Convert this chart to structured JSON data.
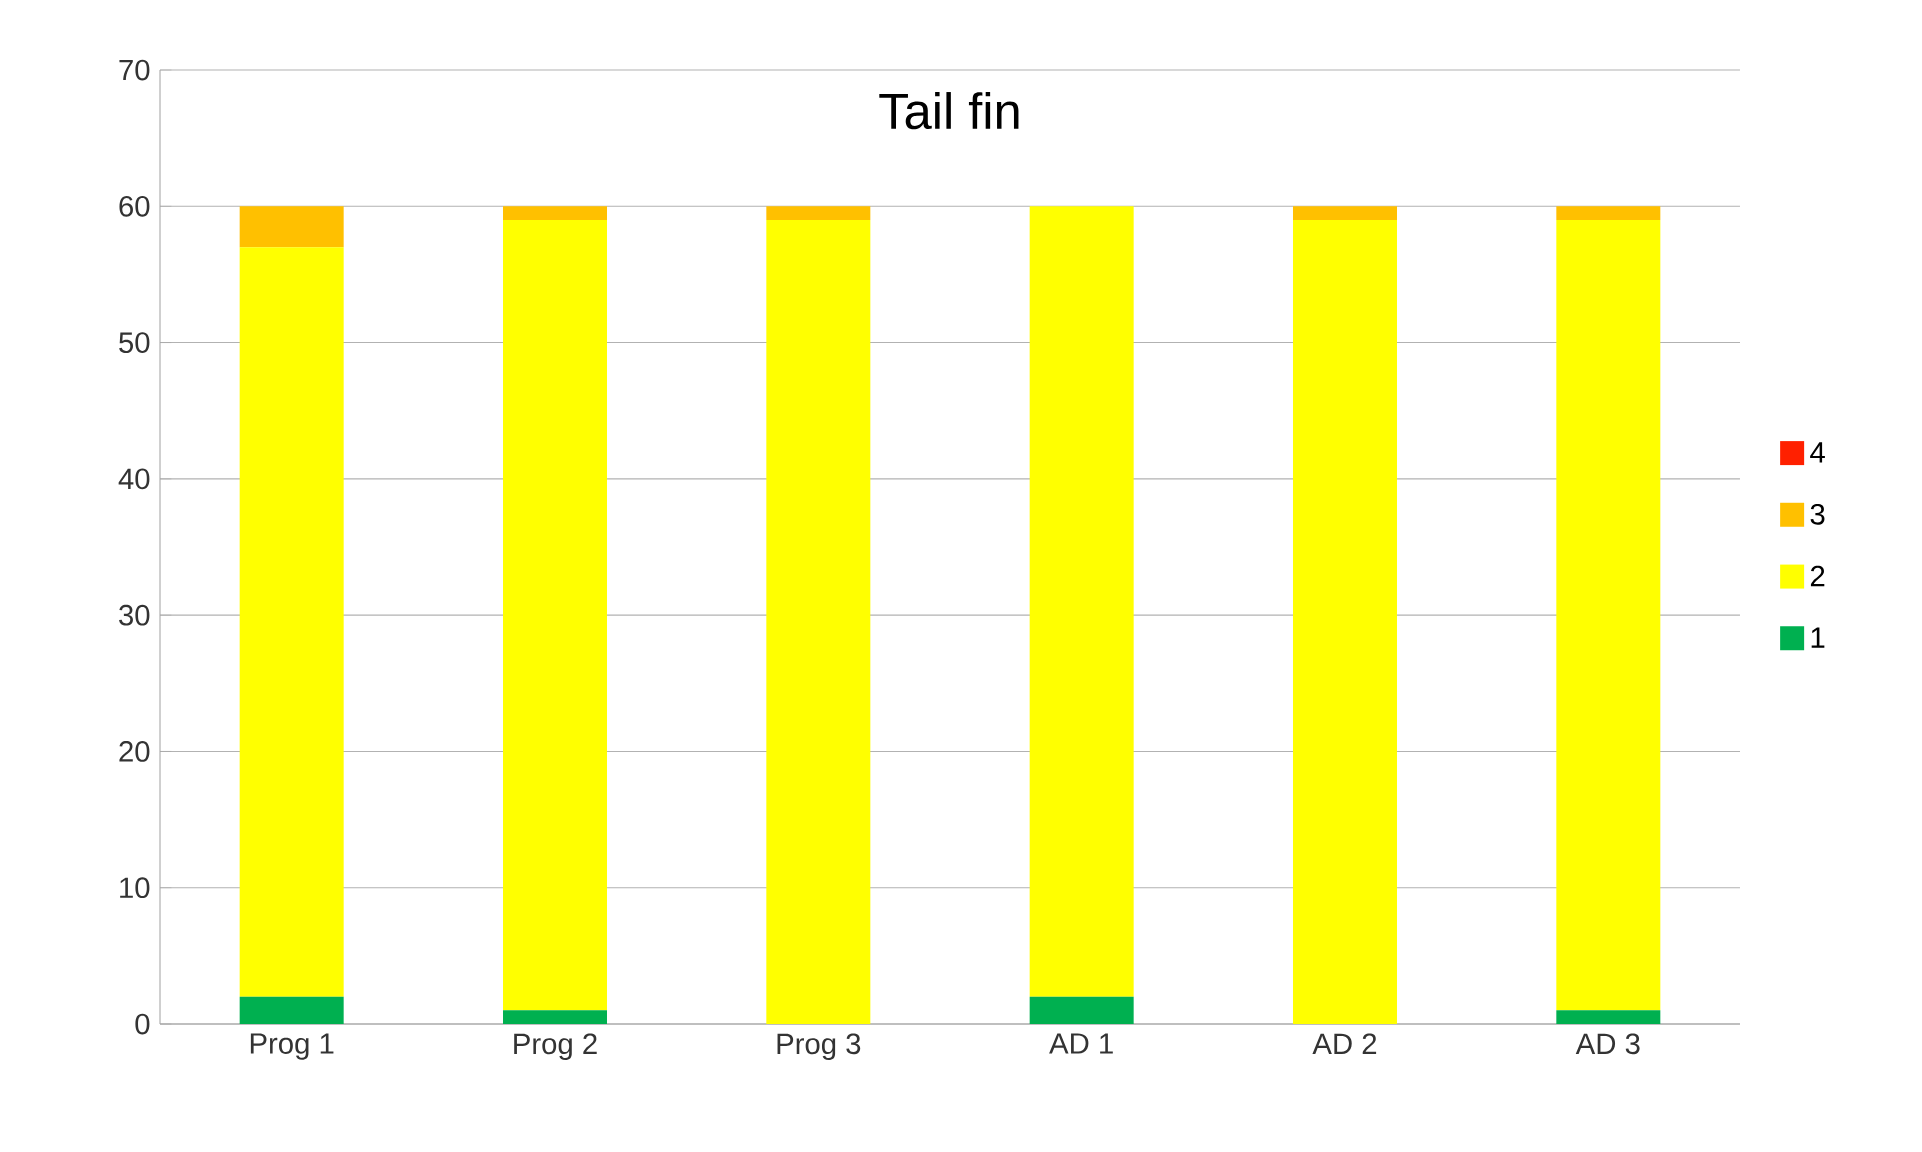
{
  "chart_data": {
    "type": "bar",
    "title": "Tail fin",
    "stacked": true,
    "categories": [
      "Prog 1",
      "Prog 2",
      "Prog 3",
      "AD 1",
      "AD 2",
      "AD 3"
    ],
    "series": [
      {
        "name": "1",
        "color": "#00b050",
        "values": [
          2,
          1,
          0,
          2,
          0,
          1
        ]
      },
      {
        "name": "2",
        "color": "#ffff00",
        "values": [
          55,
          58,
          59,
          58,
          59,
          58
        ]
      },
      {
        "name": "3",
        "color": "#ffc000",
        "values": [
          3,
          1,
          1,
          0,
          1,
          1
        ]
      },
      {
        "name": "4",
        "color": "#ff2000",
        "values": [
          0,
          0,
          0,
          0,
          0,
          0
        ]
      }
    ],
    "ylim": [
      0,
      70
    ],
    "yticks": [
      0,
      10,
      20,
      30,
      40,
      50,
      60,
      70
    ],
    "grid": "y",
    "legend": "right"
  }
}
